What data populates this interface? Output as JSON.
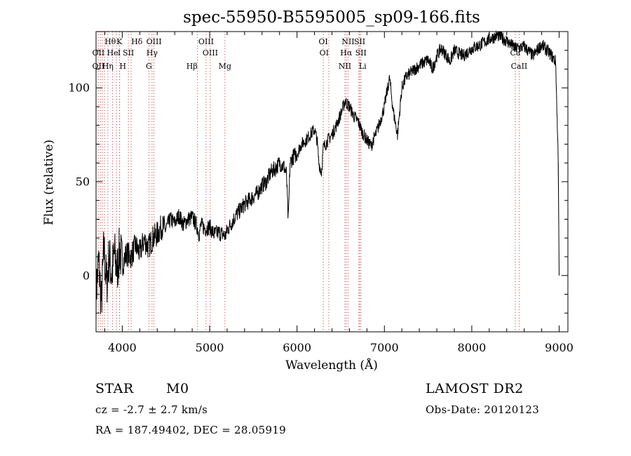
{
  "chart_data": {
    "type": "line",
    "title": "spec-55950-B5595005_sp09-166.fits",
    "xlabel": "Wavelength (Å)",
    "ylabel": "Flux (relative)",
    "xlim": [
      3700,
      9100
    ],
    "ylim": [
      -30,
      130
    ],
    "xticks": [
      4000,
      5000,
      6000,
      7000,
      8000,
      9000
    ],
    "yticks": [
      0,
      50,
      100
    ],
    "grid": false,
    "spectrum": {
      "x": [
        3700,
        3730,
        3760,
        3790,
        3820,
        3850,
        3880,
        3910,
        3940,
        3970,
        4000,
        4050,
        4100,
        4150,
        4200,
        4250,
        4300,
        4350,
        4400,
        4450,
        4500,
        4550,
        4600,
        4650,
        4700,
        4750,
        4800,
        4850,
        4880,
        4900,
        4950,
        5000,
        5050,
        5100,
        5150,
        5180,
        5200,
        5250,
        5300,
        5350,
        5400,
        5450,
        5500,
        5550,
        5600,
        5650,
        5700,
        5750,
        5800,
        5850,
        5880,
        5890,
        5900,
        5920,
        5950,
        6000,
        6050,
        6100,
        6150,
        6200,
        6230,
        6250,
        6280,
        6300,
        6350,
        6400,
        6450,
        6500,
        6550,
        6600,
        6650,
        6700,
        6750,
        6800,
        6850,
        6870,
        6900,
        6950,
        7000,
        7030,
        7060,
        7100,
        7150,
        7200,
        7250,
        7300,
        7400,
        7500,
        7550,
        7600,
        7650,
        7700,
        7750,
        7800,
        7900,
        8000,
        8100,
        8200,
        8300,
        8400,
        8500,
        8600,
        8700,
        8800,
        8900,
        8960,
        8990,
        9000,
        9000
      ],
      "y": [
        -10,
        8,
        -15,
        15,
        -5,
        10,
        0,
        12,
        2,
        14,
        6,
        12,
        10,
        16,
        12,
        19,
        15,
        20,
        22,
        26,
        25,
        30,
        28,
        32,
        27,
        30,
        31,
        27,
        22,
        27,
        25,
        26,
        22,
        23,
        22,
        21,
        24,
        28,
        32,
        35,
        38,
        40,
        42,
        44,
        48,
        50,
        55,
        57,
        60,
        58,
        54,
        40,
        28,
        60,
        63,
        65,
        70,
        72,
        75,
        78,
        72,
        60,
        55,
        68,
        72,
        75,
        80,
        86,
        93,
        90,
        85,
        82,
        76,
        72,
        69,
        72,
        75,
        82,
        90,
        98,
        105,
        88,
        75,
        100,
        106,
        108,
        112,
        115,
        110,
        117,
        121,
        118,
        114,
        120,
        117,
        121,
        123,
        126,
        128,
        125,
        121,
        122,
        117,
        123,
        118,
        114,
        60,
        0,
        0
      ]
    },
    "lines": [
      {
        "name": "Hθ",
        "x": 3797,
        "row": 0,
        "anchor": "start"
      },
      {
        "name": "K",
        "x": 3934,
        "row": 0,
        "anchor": "start"
      },
      {
        "name": "Hδ",
        "x": 4102,
        "row": 0,
        "anchor": "start"
      },
      {
        "name": "OIII",
        "x": 4363,
        "row": 0,
        "anchor": "middle"
      },
      {
        "name": "OIII",
        "x": 4959,
        "row": 0,
        "anchor": "middle"
      },
      {
        "name": "OI",
        "x": 6300,
        "row": 0,
        "anchor": "middle"
      },
      {
        "name": "NII",
        "x": 6584,
        "row": 0,
        "anchor": "middle"
      },
      {
        "name": "SII",
        "x": 6717,
        "row": 0,
        "anchor": "middle"
      },
      {
        "name": "OII",
        "x": 3727,
        "row": 1,
        "anchor": "middle"
      },
      {
        "name": "He",
        "x": 3889,
        "row": 1,
        "anchor": "middle"
      },
      {
        "name": "I",
        "x": 3965,
        "row": 1,
        "anchor": "middle"
      },
      {
        "name": "SII",
        "x": 4070,
        "row": 1,
        "anchor": "middle"
      },
      {
        "name": "Hγ",
        "x": 4341,
        "row": 1,
        "anchor": "middle"
      },
      {
        "name": "OIII",
        "x": 5007,
        "row": 1,
        "anchor": "middle"
      },
      {
        "name": "OI",
        "x": 6364,
        "row": 1,
        "anchor": "end"
      },
      {
        "name": "Hα",
        "x": 6563,
        "row": 1,
        "anchor": "middle"
      },
      {
        "name": "SII",
        "x": 6731,
        "row": 1,
        "anchor": "middle"
      },
      {
        "name": "Ca",
        "x": 8498,
        "row": 1,
        "anchor": "middle"
      },
      {
        "name": "OII",
        "x": 3727,
        "row": 2,
        "anchor": "middle"
      },
      {
        "name": "Hη",
        "x": 3835,
        "row": 2,
        "anchor": "middle"
      },
      {
        "name": "H",
        "x": 3968,
        "row": 2,
        "anchor": "start"
      },
      {
        "name": "G",
        "x": 4305,
        "row": 2,
        "anchor": "middle"
      },
      {
        "name": "Hβ",
        "x": 4861,
        "row": 2,
        "anchor": "end"
      },
      {
        "name": "Mg",
        "x": 5175,
        "row": 2,
        "anchor": "middle"
      },
      {
        "name": "NII",
        "x": 6548,
        "row": 2,
        "anchor": "middle"
      },
      {
        "name": "Li",
        "x": 6708,
        "row": 2,
        "anchor": "start"
      },
      {
        "name": "CaII",
        "x": 8542,
        "row": 2,
        "anchor": "middle"
      }
    ],
    "line_markers_x": [
      3727,
      3750,
      3771,
      3797,
      3835,
      3889,
      3934,
      3968,
      3970,
      4070,
      4102,
      4305,
      4341,
      4363,
      4861,
      4959,
      5007,
      5175,
      6300,
      6364,
      6548,
      6563,
      6584,
      6708,
      6717,
      6731,
      8498,
      8542
    ]
  },
  "footer": {
    "object_class": "STAR",
    "subclass": "M0",
    "survey": "LAMOST DR2",
    "redshift_text": "cz = -2.7 ± 2.7 km/s",
    "obs_date": "Obs-Date: 20120123",
    "coords": "RA = 187.49402, DEC =  28.05919"
  }
}
